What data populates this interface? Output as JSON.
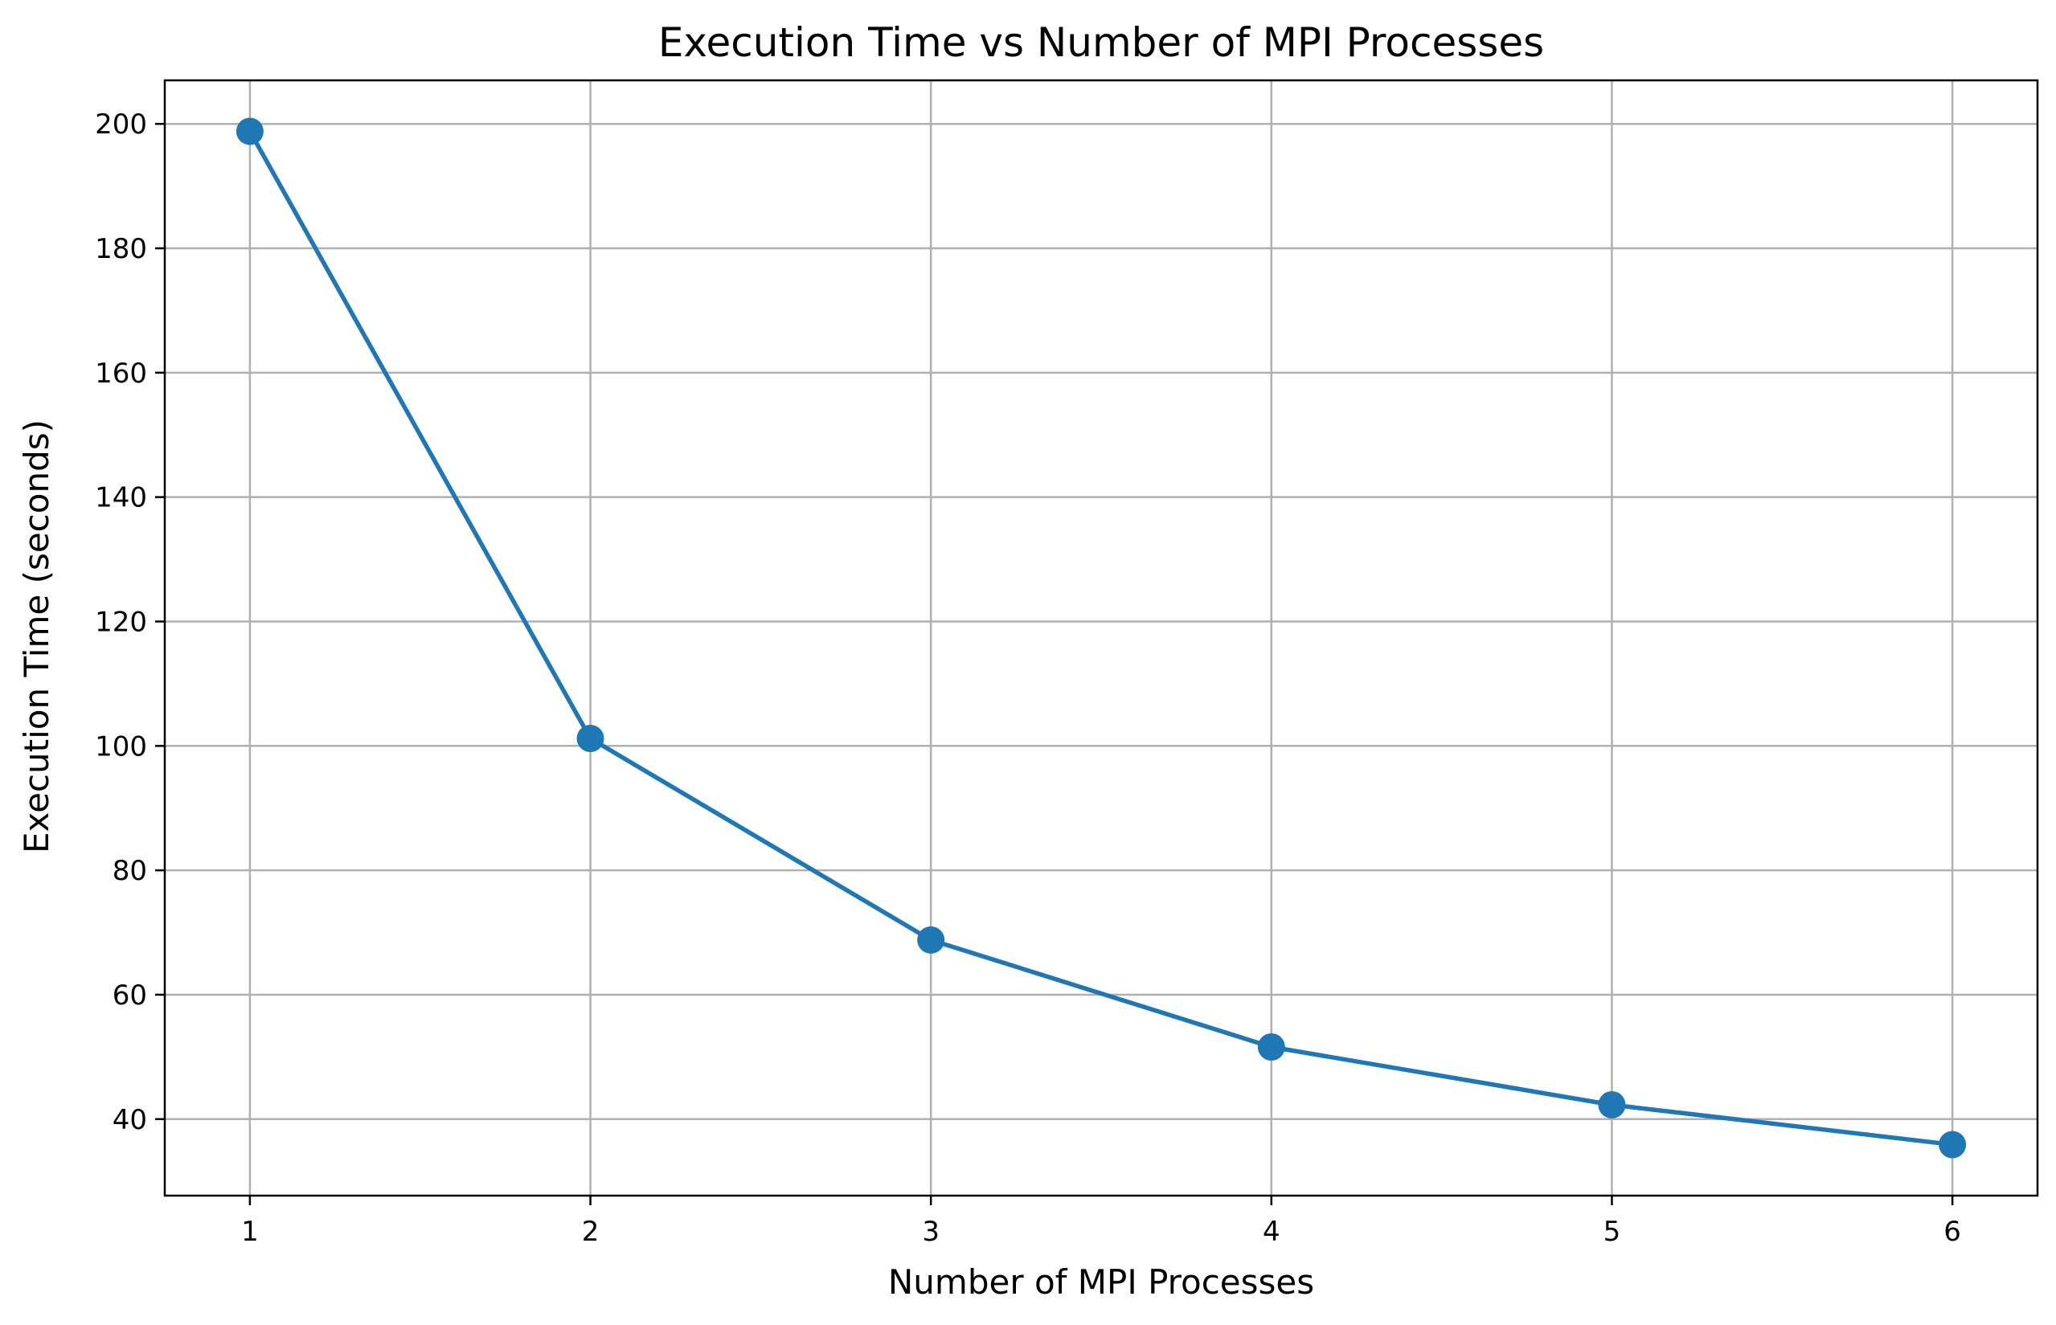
{
  "chart_data": {
    "type": "line",
    "title": "Execution Time vs Number of MPI Processes",
    "xlabel": "Number of MPI Processes",
    "ylabel": "Execution Time (seconds)",
    "x": [
      1,
      2,
      3,
      4,
      5,
      6
    ],
    "series": [
      {
        "values": [
          198.8,
          101.2,
          68.8,
          51.6,
          42.3,
          35.9
        ],
        "color": "#1f77b4",
        "marker": "circle"
      }
    ],
    "xticks": [
      "1",
      "2",
      "3",
      "4",
      "5",
      "6"
    ],
    "yticks": [
      "40",
      "60",
      "80",
      "100",
      "120",
      "140",
      "160",
      "180",
      "200"
    ],
    "xlim": [
      0.75,
      6.25
    ],
    "ylim": [
      27.7,
      207.0
    ],
    "grid": true,
    "legend": "none"
  }
}
